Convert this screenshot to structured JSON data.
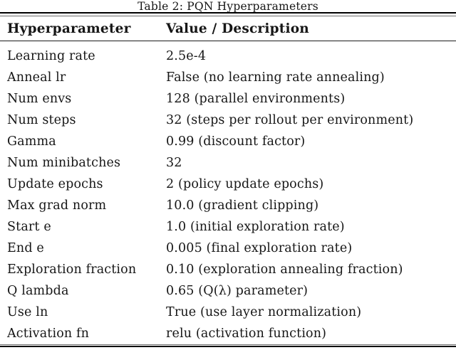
{
  "table": {
    "caption": "Table 2: PQN Hyperparameters",
    "columns": [
      "Hyperparameter",
      "Value / Description"
    ],
    "rows": [
      {
        "param": "Learning rate",
        "value": "2.5e-4"
      },
      {
        "param": "Anneal lr",
        "value": "False (no learning rate annealing)"
      },
      {
        "param": "Num envs",
        "value": "128 (parallel environments)"
      },
      {
        "param": "Num steps",
        "value": "32 (steps per rollout per environment)"
      },
      {
        "param": "Gamma",
        "value": "0.99 (discount factor)"
      },
      {
        "param": "Num minibatches",
        "value": "32"
      },
      {
        "param": "Update epochs",
        "value": "2 (policy update epochs)"
      },
      {
        "param": "Max grad norm",
        "value": "10.0 (gradient clipping)"
      },
      {
        "param": "Start e",
        "value": "1.0 (initial exploration rate)"
      },
      {
        "param": "End e",
        "value": "0.005 (final exploration rate)"
      },
      {
        "param": "Exploration fraction",
        "value": "0.10 (exploration annealing fraction)"
      },
      {
        "param": "Q lambda",
        "value": "0.65 (Q(λ) parameter)"
      },
      {
        "param": "Use ln",
        "value": "True (use layer normalization)"
      },
      {
        "param": "Activation fn",
        "value": "relu (activation function)"
      }
    ],
    "colors": {
      "text": "#161616",
      "rule_thick": "#000000",
      "rule_thin": "#6e6e6e",
      "background": "#ffffff"
    }
  }
}
